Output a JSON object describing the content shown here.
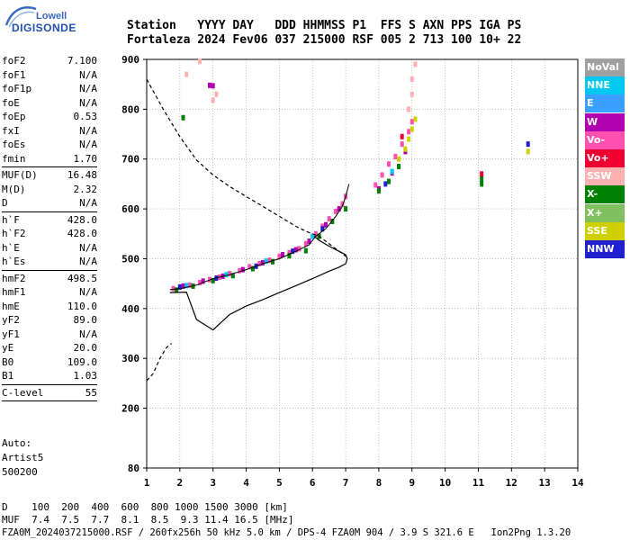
{
  "header": {
    "line1": "Station   YYYY DAY   DDD HHMMSS P1  FFS S AXN PPS IGA PS",
    "line2": "Fortaleza 2024 Fev06 037 215000 RSF 005 2 713 100 10+ 22"
  },
  "logo": {
    "top": "Lowell",
    "bottom": "DIGISONDE"
  },
  "params_groups": [
    [
      {
        "label": "foF2",
        "value": "7.100"
      },
      {
        "label": "foF1",
        "value": "N/A"
      },
      {
        "label": "foF1p",
        "value": "N/A"
      },
      {
        "label": "foE",
        "value": "N/A"
      },
      {
        "label": "foEp",
        "value": "0.53"
      },
      {
        "label": "fxI",
        "value": "N/A"
      },
      {
        "label": "foEs",
        "value": "N/A"
      },
      {
        "label": "fmin",
        "value": "1.70"
      }
    ],
    [
      {
        "label": "MUF(D)",
        "value": "16.48"
      },
      {
        "label": "M(D)",
        "value": "2.32"
      },
      {
        "label": "D",
        "value": "N/A"
      }
    ],
    [
      {
        "label": "h`F",
        "value": "428.0"
      },
      {
        "label": "h`F2",
        "value": "428.0"
      },
      {
        "label": "h`E",
        "value": "N/A"
      },
      {
        "label": "h`Es",
        "value": "N/A"
      }
    ],
    [
      {
        "label": "hmF2",
        "value": "498.5"
      },
      {
        "label": "hmF1",
        "value": "N/A"
      },
      {
        "label": "hmE",
        "value": "110.0"
      },
      {
        "label": "yF2",
        "value": "89.0"
      },
      {
        "label": "yF1",
        "value": "N/A"
      },
      {
        "label": "yE",
        "value": "20.0"
      },
      {
        "label": "B0",
        "value": "109.0"
      },
      {
        "label": "B1",
        "value": "1.03"
      }
    ],
    [
      {
        "label": "C-level",
        "value": "55"
      }
    ]
  ],
  "auto": [
    "Auto:",
    "Artist5",
    "500200"
  ],
  "footer": {
    "line1": "D    100  200  400  600  800 1000 1500 3000 [km]",
    "line2": "MUF  7.4  7.5  7.7  8.1  8.5  9.3 11.4 16.5 [MHz]",
    "line3": "FZA0M_2024037215000.RSF / 260fx256h 50 kHz 5.0 km / DPS-4 FZA0M 904 / 3.9 S 321.6 E   Ion2Png 1.3.20"
  },
  "legend": [
    {
      "label": "NoVal",
      "color": "#a0a0a0"
    },
    {
      "label": "NNE",
      "color": "#00c8f0"
    },
    {
      "label": "E",
      "color": "#3aa0ff"
    },
    {
      "label": "W",
      "color": "#b000b0"
    },
    {
      "label": "Vo-",
      "color": "#ff50b0"
    },
    {
      "label": "Vo+",
      "color": "#f00030"
    },
    {
      "label": "SSW",
      "color": "#ffb0b0"
    },
    {
      "label": "X-",
      "color": "#008000"
    },
    {
      "label": "X+",
      "color": "#80c060"
    },
    {
      "label": "SSE",
      "color": "#d0d000"
    },
    {
      "label": "NNW",
      "color": "#2020d0"
    }
  ],
  "chart_data": {
    "type": "scatter",
    "xlim": [
      1,
      14
    ],
    "ylim": [
      80,
      900
    ],
    "x_ticks": [
      1,
      2,
      3,
      4,
      5,
      6,
      7,
      8,
      9,
      10,
      11,
      12,
      13,
      14
    ],
    "y_ticks": [
      80,
      200,
      300,
      400,
      500,
      600,
      700,
      800,
      900
    ],
    "grid": true,
    "profile_solid": [
      [
        1.7,
        432
      ],
      [
        2.2,
        433
      ],
      [
        2.5,
        378
      ],
      [
        3.0,
        357
      ],
      [
        3.5,
        388
      ],
      [
        4.0,
        405
      ],
      [
        4.5,
        418
      ],
      [
        5.0,
        432
      ],
      [
        5.5,
        446
      ],
      [
        6.0,
        460
      ],
      [
        6.5,
        475
      ],
      [
        6.8,
        483
      ],
      [
        7.0,
        490
      ],
      [
        7.05,
        500
      ],
      [
        7.0,
        508
      ],
      [
        6.8,
        515
      ],
      [
        6.5,
        525
      ],
      [
        6.2,
        537
      ],
      [
        6.05,
        545
      ]
    ],
    "profile_lower_dashed": [
      [
        1.0,
        255
      ],
      [
        1.2,
        270
      ],
      [
        1.4,
        300
      ],
      [
        1.6,
        322
      ],
      [
        1.75,
        330
      ]
    ],
    "profile_upper_dashed": [
      [
        1.0,
        860
      ],
      [
        1.5,
        800
      ],
      [
        2.0,
        745
      ],
      [
        2.5,
        698
      ],
      [
        3.0,
        668
      ],
      [
        3.5,
        645
      ],
      [
        4.0,
        625
      ],
      [
        4.5,
        605
      ],
      [
        5.0,
        585
      ],
      [
        5.5,
        565
      ],
      [
        5.8,
        555
      ],
      [
        6.0,
        550
      ],
      [
        6.2,
        545
      ],
      [
        6.4,
        535
      ],
      [
        6.7,
        520
      ],
      [
        7.0,
        505
      ]
    ],
    "oray_trace": [
      [
        1.7,
        438
      ],
      [
        2.0,
        440
      ],
      [
        2.5,
        447
      ],
      [
        3.0,
        460
      ],
      [
        3.5,
        468
      ],
      [
        4.0,
        478
      ],
      [
        4.5,
        490
      ],
      [
        5.0,
        500
      ],
      [
        5.5,
        515
      ],
      [
        5.9,
        528
      ],
      [
        6.1,
        545
      ],
      [
        6.4,
        560
      ],
      [
        6.7,
        585
      ],
      [
        6.9,
        605
      ],
      [
        7.0,
        625
      ],
      [
        7.1,
        650
      ]
    ],
    "scatter_groups": [
      {
        "color": "#ff50b0",
        "points": [
          [
            1.8,
            440
          ],
          [
            2.0,
            443
          ],
          [
            2.3,
            447
          ],
          [
            2.6,
            452
          ],
          [
            2.9,
            458
          ],
          [
            3.2,
            463
          ],
          [
            3.5,
            470
          ],
          [
            3.8,
            476
          ],
          [
            4.1,
            484
          ],
          [
            4.4,
            490
          ],
          [
            4.7,
            497
          ],
          [
            5.0,
            505
          ],
          [
            5.3,
            512
          ],
          [
            5.6,
            520
          ],
          [
            5.8,
            530
          ],
          [
            6.1,
            550
          ],
          [
            6.3,
            565
          ],
          [
            6.5,
            580
          ],
          [
            6.7,
            595
          ],
          [
            6.9,
            610
          ],
          [
            7.0,
            625
          ],
          [
            7.9,
            648
          ],
          [
            8.1,
            668
          ],
          [
            8.3,
            690
          ],
          [
            8.5,
            705
          ],
          [
            8.7,
            730
          ],
          [
            8.9,
            755
          ],
          [
            9.0,
            775
          ]
        ]
      },
      {
        "color": "#b000b0",
        "points": [
          [
            2.1,
            445
          ],
          [
            2.7,
            455
          ],
          [
            3.3,
            465
          ],
          [
            3.9,
            478
          ],
          [
            4.5,
            492
          ],
          [
            5.1,
            508
          ],
          [
            5.5,
            518
          ],
          [
            5.9,
            535
          ],
          [
            6.4,
            568
          ],
          [
            6.8,
            600
          ],
          [
            8.0,
            640
          ],
          [
            8.4,
            672
          ],
          [
            8.8,
            715
          ],
          [
            2.9,
            848
          ],
          [
            3.0,
            847
          ]
        ]
      },
      {
        "color": "#008000",
        "points": [
          [
            1.9,
            437
          ],
          [
            2.4,
            445
          ],
          [
            3.0,
            456
          ],
          [
            3.6,
            466
          ],
          [
            4.2,
            480
          ],
          [
            4.8,
            494
          ],
          [
            5.3,
            506
          ],
          [
            5.8,
            516
          ],
          [
            6.2,
            545
          ],
          [
            6.6,
            575
          ],
          [
            7.0,
            600
          ],
          [
            8.0,
            636
          ],
          [
            8.3,
            655
          ],
          [
            8.6,
            685
          ],
          [
            11.1,
            650
          ],
          [
            11.1,
            660
          ],
          [
            2.1,
            783
          ]
        ]
      },
      {
        "color": "#d0d000",
        "points": [
          [
            8.6,
            700
          ],
          [
            8.8,
            720
          ],
          [
            8.9,
            740
          ],
          [
            9.0,
            760
          ],
          [
            9.1,
            780
          ],
          [
            12.5,
            715
          ]
        ]
      },
      {
        "color": "#ffb0b0",
        "points": [
          [
            8.9,
            800
          ],
          [
            9.0,
            830
          ],
          [
            9.0,
            860
          ],
          [
            9.1,
            890
          ],
          [
            2.6,
            896
          ],
          [
            3.0,
            818
          ],
          [
            3.1,
            830
          ],
          [
            2.2,
            870
          ]
        ]
      },
      {
        "color": "#2020d0",
        "points": [
          [
            2.0,
            443
          ],
          [
            3.1,
            461
          ],
          [
            4.3,
            485
          ],
          [
            5.4,
            515
          ],
          [
            6.3,
            560
          ],
          [
            8.2,
            650
          ],
          [
            12.5,
            730
          ]
        ]
      },
      {
        "color": "#00c8f0",
        "points": [
          [
            2.2,
            446
          ],
          [
            3.4,
            468
          ],
          [
            4.6,
            495
          ],
          [
            6.0,
            545
          ],
          [
            8.4,
            675
          ]
        ]
      },
      {
        "color": "#f00030",
        "points": [
          [
            11.1,
            670
          ],
          [
            8.7,
            745
          ]
        ]
      }
    ]
  }
}
